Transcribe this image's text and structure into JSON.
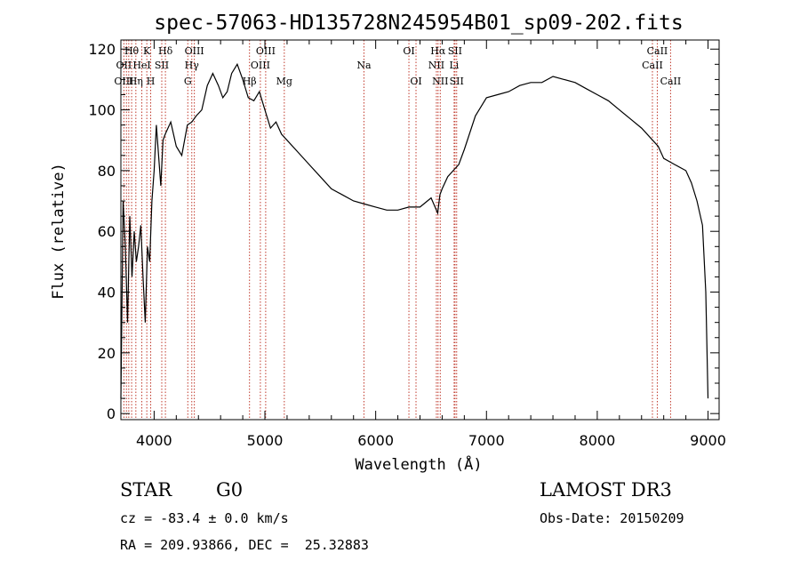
{
  "chart_data": {
    "type": "line",
    "title": "spec-57063-HD135728N245954B01_sp09-202.fits",
    "xlabel": "Wavelength (Å)",
    "ylabel": "Flux (relative)",
    "xlim": [
      3700,
      9100
    ],
    "ylim": [
      -2,
      123
    ],
    "x_ticks": [
      4000,
      5000,
      6000,
      7000,
      8000,
      9000
    ],
    "y_ticks": [
      0,
      20,
      40,
      60,
      80,
      100,
      120
    ],
    "grid": false,
    "series": [
      {
        "x": [
          3700,
          3720,
          3740,
          3760,
          3780,
          3800,
          3820,
          3840,
          3860,
          3880,
          3900,
          3920,
          3940,
          3960,
          3980,
          4000,
          4020,
          4040,
          4060,
          4080,
          4100,
          4150,
          4200,
          4250,
          4300,
          4340,
          4380,
          4430,
          4480,
          4530,
          4580,
          4620,
          4660,
          4700,
          4750,
          4800,
          4850,
          4900,
          4950,
          5000,
          5050,
          5100,
          5150,
          5200,
          5300,
          5400,
          5500,
          5600,
          5700,
          5800,
          5900,
          6000,
          6100,
          6200,
          6300,
          6400,
          6500,
          6560,
          6580,
          6600,
          6650,
          6700,
          6750,
          6800,
          6900,
          7000,
          7100,
          7200,
          7300,
          7400,
          7500,
          7600,
          7700,
          7800,
          7900,
          8000,
          8100,
          8200,
          8300,
          8400,
          8500,
          8550,
          8600,
          8700,
          8800,
          8850,
          8900,
          8950,
          8980,
          9000
        ],
        "y": [
          5,
          70,
          55,
          30,
          65,
          45,
          60,
          50,
          55,
          62,
          45,
          30,
          55,
          50,
          70,
          80,
          95,
          85,
          75,
          90,
          92,
          96,
          88,
          85,
          95,
          96,
          98,
          100,
          108,
          112,
          108,
          104,
          106,
          112,
          115,
          110,
          104,
          103,
          106,
          100,
          94,
          96,
          92,
          90,
          86,
          82,
          78,
          74,
          72,
          70,
          69,
          68,
          67,
          67,
          68,
          68,
          71,
          66,
          72,
          74,
          78,
          80,
          82,
          87,
          98,
          104,
          105,
          106,
          108,
          109,
          109,
          111,
          110,
          109,
          107,
          105,
          103,
          100,
          97,
          94,
          90,
          88,
          84,
          82,
          80,
          76,
          70,
          62,
          40,
          5
        ]
      }
    ],
    "line_labels": [
      {
        "label": "Hθ",
        "wave": 3797,
        "row": 1
      },
      {
        "label": "OII",
        "wave": 3727,
        "row": 2
      },
      {
        "label": "OIII",
        "wave": 3727,
        "row": 3
      },
      {
        "label": "K",
        "wave": 3934,
        "row": 1
      },
      {
        "label": "HeI",
        "wave": 3889,
        "row": 2
      },
      {
        "label": "Hη",
        "wave": 3835,
        "row": 3
      },
      {
        "label": "H",
        "wave": 3969,
        "row": 3
      },
      {
        "label": "Hδ",
        "wave": 4102,
        "row": 1
      },
      {
        "label": "SII",
        "wave": 4069,
        "row": 2
      },
      {
        "label": "OIII",
        "wave": 4363,
        "row": 1
      },
      {
        "label": "Hγ",
        "wave": 4340,
        "row": 2
      },
      {
        "label": "G",
        "wave": 4304,
        "row": 3
      },
      {
        "label": "OIII",
        "wave": 5007,
        "row": 1
      },
      {
        "label": "OIII",
        "wave": 4959,
        "row": 2
      },
      {
        "label": "Hβ",
        "wave": 4861,
        "row": 3
      },
      {
        "label": "Mg",
        "wave": 5175,
        "row": 3
      },
      {
        "label": "Na",
        "wave": 5894,
        "row": 2
      },
      {
        "label": "OI",
        "wave": 6300,
        "row": 1
      },
      {
        "label": "OI",
        "wave": 6364,
        "row": 3
      },
      {
        "label": "Hα",
        "wave": 6563,
        "row": 1
      },
      {
        "label": "SII",
        "wave": 6716,
        "row": 1
      },
      {
        "label": "NII",
        "wave": 6548,
        "row": 2
      },
      {
        "label": "Li",
        "wave": 6708,
        "row": 2
      },
      {
        "label": "NII",
        "wave": 6583,
        "row": 3
      },
      {
        "label": "SII",
        "wave": 6731,
        "row": 3
      },
      {
        "label": "CaII",
        "wave": 8542,
        "row": 1
      },
      {
        "label": "CaII",
        "wave": 8498,
        "row": 2
      },
      {
        "label": "CaII",
        "wave": 8662,
        "row": 3
      }
    ],
    "line_marker_waves": [
      3727,
      3750,
      3771,
      3797,
      3835,
      3889,
      3934,
      3969,
      4069,
      4102,
      4304,
      4340,
      4363,
      4861,
      4959,
      5007,
      5175,
      5894,
      6300,
      6364,
      6548,
      6563,
      6583,
      6708,
      6716,
      6731,
      8498,
      8542,
      8662
    ]
  },
  "info": {
    "object_class": "STAR",
    "subclass": "G0",
    "redshift": "cz = -83.4 ± 0.0 km/s",
    "coords": "RA = 209.93866, DEC =  25.32883",
    "survey": "LAMOST DR3",
    "obs_date": "Obs-Date: 20150209"
  },
  "colors": {
    "spectrum": "#000000",
    "line_marker": "#c0392b",
    "axes": "#000000"
  }
}
